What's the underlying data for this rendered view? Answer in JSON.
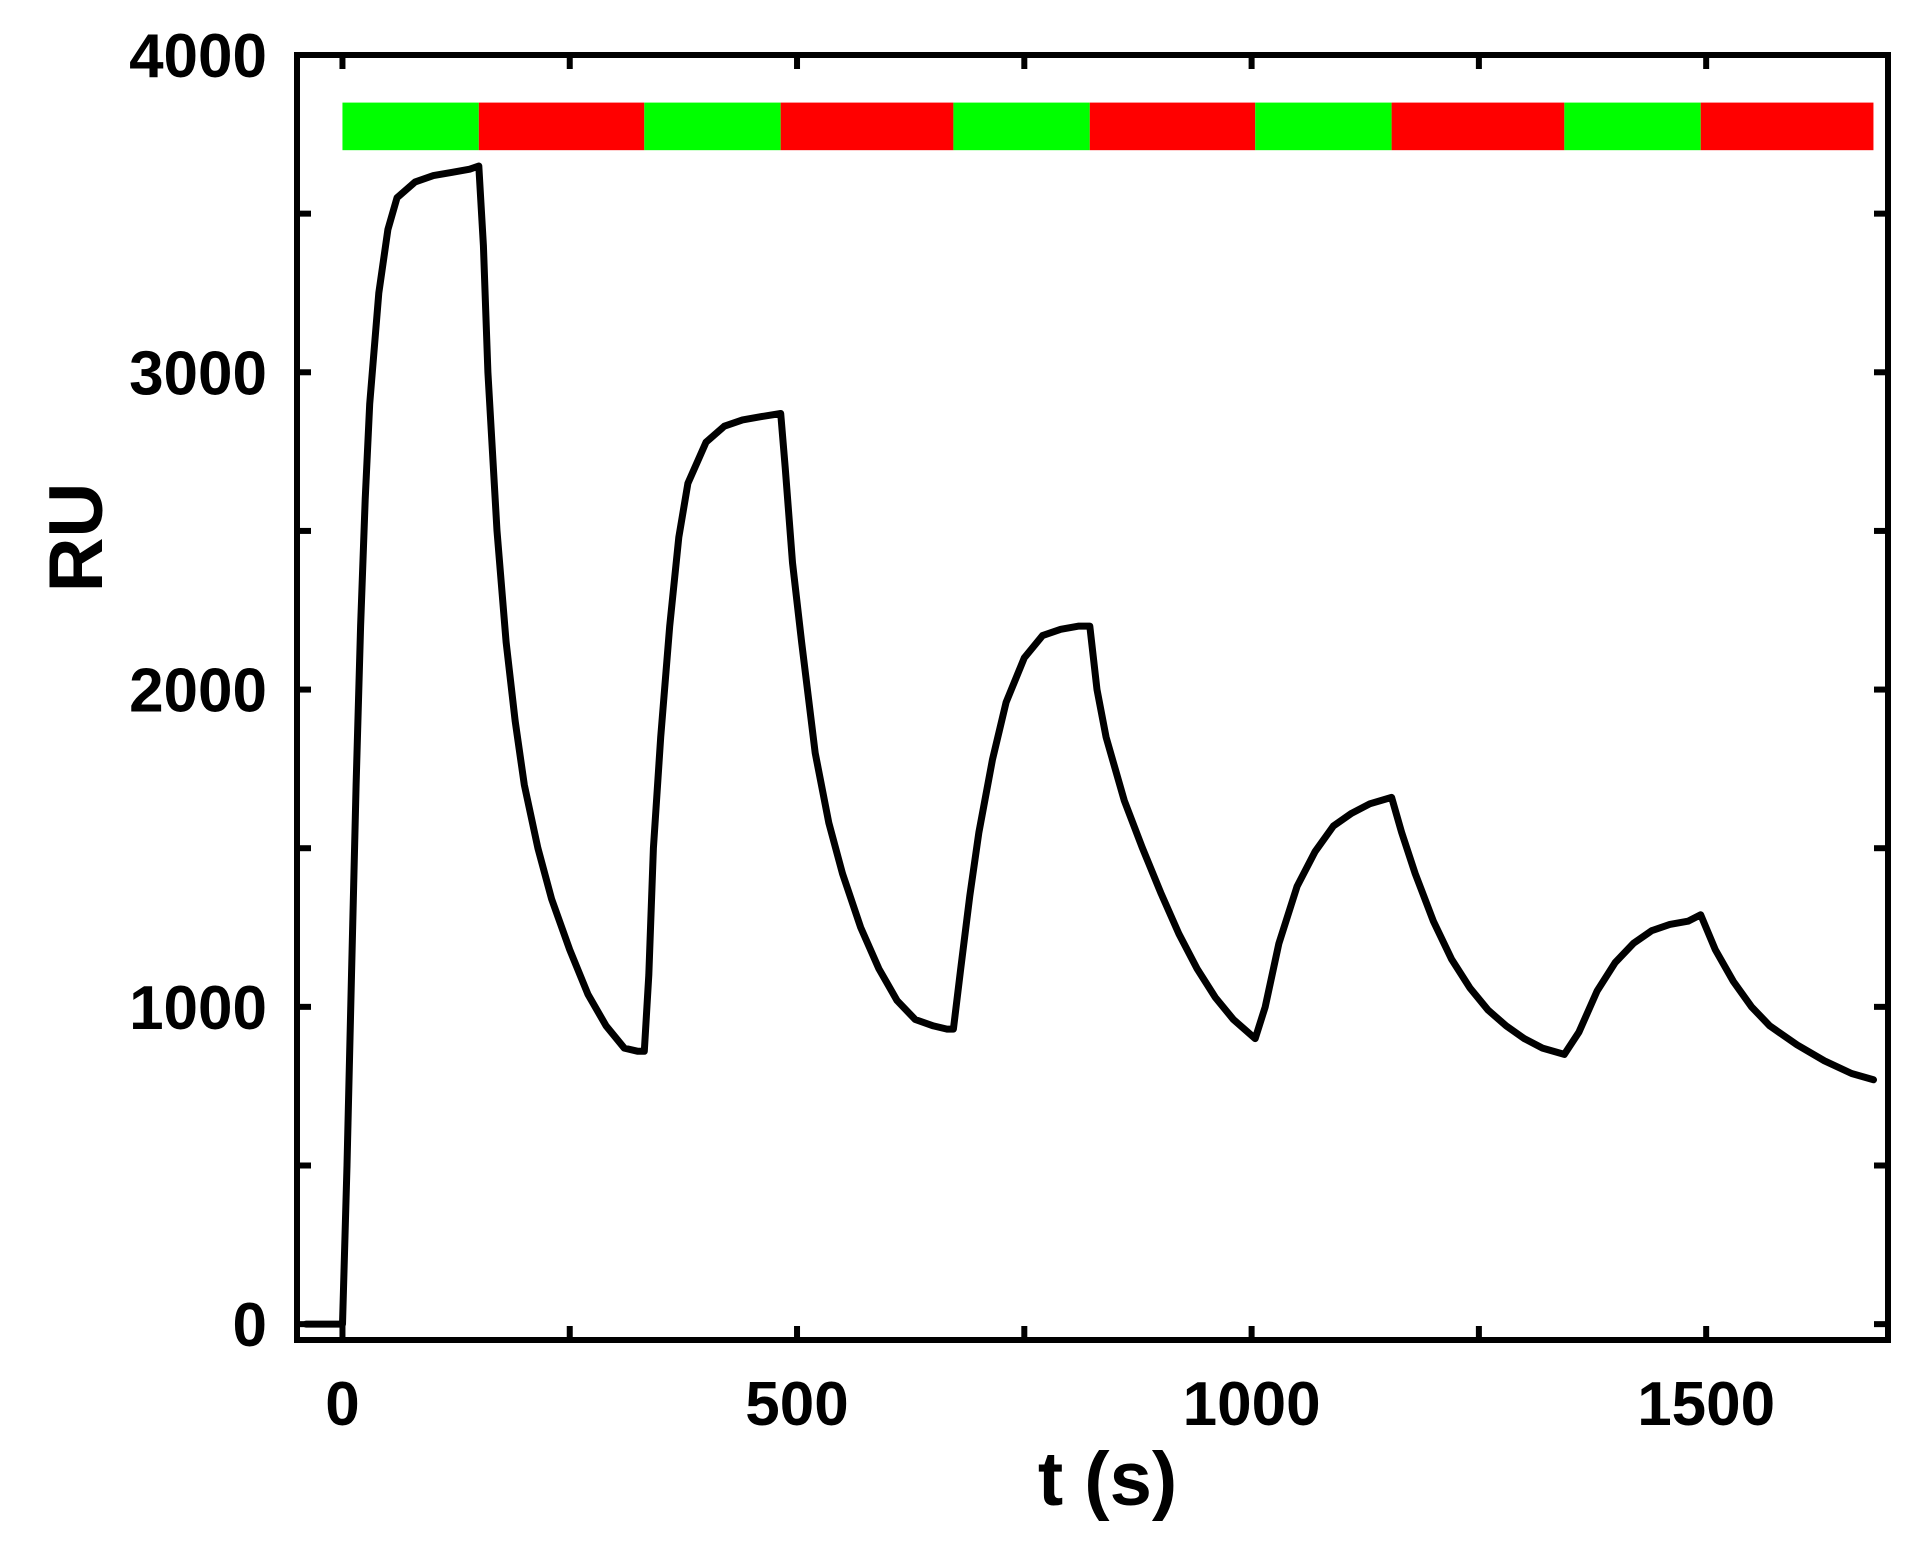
{
  "chart_data": {
    "type": "line",
    "xlabel": "t (s)",
    "ylabel": "RU",
    "xlim": [
      -50,
      1700
    ],
    "ylim": [
      -50,
      4000
    ],
    "xticks": [
      0,
      500,
      1000,
      1500
    ],
    "xtick_labels": [
      "0",
      "500",
      "1000",
      "1500"
    ],
    "yticks": [
      0,
      1000,
      2000,
      3000,
      4000
    ],
    "ytick_labels": [
      "0",
      "1000",
      "2000",
      "3000",
      "4000"
    ],
    "grid": false,
    "line_color": "#000000",
    "phase_bar": {
      "y_range": [
        3700,
        3850
      ],
      "colors": {
        "association": "#00ff00",
        "dissociation": "#ff0000"
      },
      "segments": [
        {
          "phase": "association",
          "x0": 0,
          "x1": 150
        },
        {
          "phase": "dissociation",
          "x0": 150,
          "x1": 332
        },
        {
          "phase": "association",
          "x0": 332,
          "x1": 482
        },
        {
          "phase": "dissociation",
          "x0": 482,
          "x1": 672
        },
        {
          "phase": "association",
          "x0": 672,
          "x1": 822
        },
        {
          "phase": "dissociation",
          "x0": 822,
          "x1": 1004
        },
        {
          "phase": "association",
          "x0": 1004,
          "x1": 1154
        },
        {
          "phase": "dissociation",
          "x0": 1154,
          "x1": 1344
        },
        {
          "phase": "association",
          "x0": 1344,
          "x1": 1494
        },
        {
          "phase": "dissociation",
          "x0": 1494,
          "x1": 1684
        }
      ]
    },
    "series": [
      {
        "x": [
          -40,
          -5,
          0,
          5,
          10,
          15,
          20,
          25,
          30,
          40,
          50,
          60,
          80,
          100,
          120,
          140,
          150,
          155,
          160,
          170,
          180,
          190,
          200,
          215,
          230,
          250,
          270,
          290,
          310,
          325,
          332,
          337,
          342,
          350,
          360,
          370,
          380,
          400,
          420,
          440,
          460,
          482,
          487,
          495,
          505,
          520,
          535,
          550,
          570,
          590,
          610,
          630,
          650,
          665,
          672,
          680,
          690,
          700,
          715,
          730,
          750,
          770,
          790,
          810,
          822,
          830,
          840,
          850,
          860,
          880,
          900,
          920,
          940,
          960,
          980,
          1004,
          1015,
          1030,
          1050,
          1070,
          1090,
          1110,
          1130,
          1154,
          1165,
          1180,
          1200,
          1220,
          1240,
          1260,
          1280,
          1300,
          1320,
          1344,
          1360,
          1380,
          1400,
          1420,
          1440,
          1460,
          1480,
          1494,
          1510,
          1530,
          1550,
          1570,
          1600,
          1630,
          1660,
          1684
        ],
        "y": [
          0,
          0,
          0,
          500,
          1100,
          1700,
          2200,
          2600,
          2900,
          3250,
          3450,
          3550,
          3600,
          3620,
          3630,
          3640,
          3650,
          3400,
          3000,
          2500,
          2150,
          1900,
          1700,
          1500,
          1340,
          1180,
          1040,
          940,
          870,
          860,
          860,
          1100,
          1500,
          1850,
          2200,
          2480,
          2650,
          2780,
          2830,
          2850,
          2860,
          2870,
          2700,
          2400,
          2150,
          1800,
          1580,
          1420,
          1250,
          1120,
          1020,
          960,
          940,
          930,
          930,
          1120,
          1350,
          1550,
          1780,
          1960,
          2100,
          2170,
          2190,
          2200,
          2200,
          2000,
          1850,
          1750,
          1650,
          1500,
          1360,
          1230,
          1120,
          1030,
          960,
          900,
          1000,
          1200,
          1380,
          1490,
          1570,
          1610,
          1640,
          1660,
          1550,
          1420,
          1270,
          1150,
          1060,
          990,
          940,
          900,
          870,
          850,
          920,
          1050,
          1140,
          1200,
          1240,
          1260,
          1270,
          1290,
          1180,
          1080,
          1000,
          940,
          880,
          830,
          790,
          770
        ]
      }
    ]
  }
}
